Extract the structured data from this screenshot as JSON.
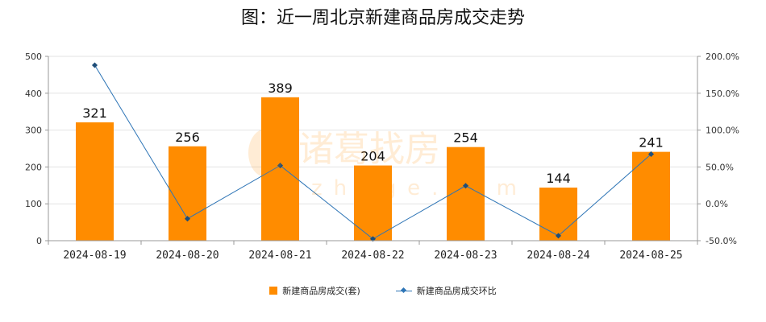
{
  "chart_data": {
    "type": "bar",
    "title": "图：近一周北京新建商品房成交走势",
    "categories": [
      "2024-08-19",
      "2024-08-20",
      "2024-08-21",
      "2024-08-22",
      "2024-08-23",
      "2024-08-24",
      "2024-08-25"
    ],
    "series": [
      {
        "name": "新建商品房成交(套)",
        "type": "bar",
        "axis": "left",
        "color": "#ff8c00",
        "values": [
          321,
          256,
          389,
          204,
          254,
          144,
          241
        ],
        "data_labels": [
          "321",
          "256",
          "389",
          "204",
          "254",
          "144",
          "241"
        ]
      },
      {
        "name": "新建商品房成交环比",
        "type": "line",
        "axis": "right",
        "color": "#2e75b6",
        "values": [
          188.0,
          -20.2,
          52.0,
          -47.6,
          24.5,
          -43.3,
          67.4
        ]
      }
    ],
    "y_left": {
      "ylim": [
        0,
        500
      ],
      "ticks": [
        "0",
        "100",
        "200",
        "300",
        "400",
        "500"
      ]
    },
    "y_right": {
      "ylim": [
        -50,
        200
      ],
      "ticks": [
        "-50.0%",
        "0.0%",
        "50.0%",
        "100.0%",
        "150.0%",
        "200.0%"
      ]
    },
    "grid": true,
    "legend_position": "bottom",
    "watermark": {
      "brand": "诸葛找房",
      "domain": "zhuge.com"
    }
  }
}
